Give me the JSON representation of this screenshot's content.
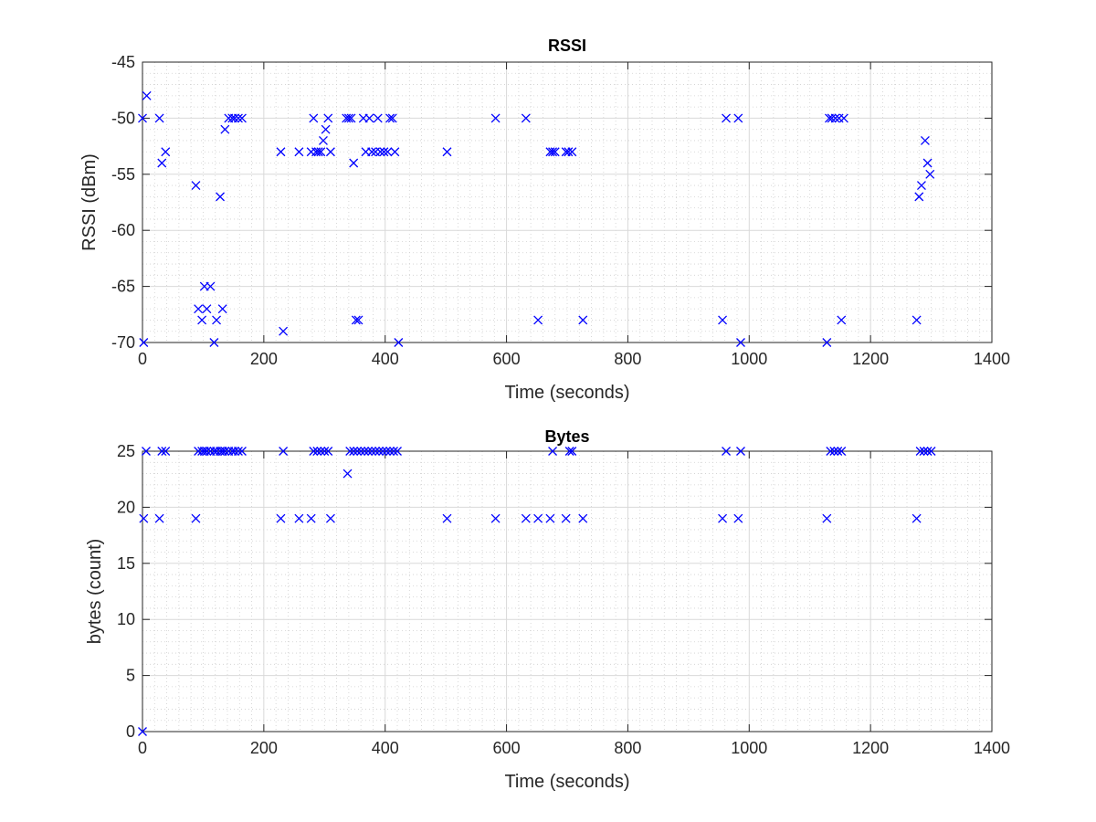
{
  "chart_data": [
    {
      "type": "scatter",
      "title": "RSSI",
      "xlabel": "Time (seconds)",
      "ylabel": "RSSI (dBm)",
      "xlim": [
        0,
        1400
      ],
      "ylim": [
        -70,
        -45
      ],
      "xticks": [
        0,
        200,
        400,
        600,
        800,
        1000,
        1200,
        1400
      ],
      "xtick_labels": [
        "0",
        "200",
        "400",
        "600",
        "800",
        "1000",
        "1200",
        "1400"
      ],
      "yticks": [
        -70,
        -65,
        -60,
        -55,
        -50,
        -45
      ],
      "ytick_labels": [
        "-70",
        "-65",
        "-60",
        "-55",
        "-50",
        "-45"
      ],
      "grid": true,
      "minor_grid": true,
      "marker": "x",
      "marker_color": "#0000ff",
      "points": [
        [
          0,
          -50
        ],
        [
          2,
          -70
        ],
        [
          7,
          -48
        ],
        [
          28,
          -50
        ],
        [
          32,
          -54
        ],
        [
          38,
          -53
        ],
        [
          88,
          -56
        ],
        [
          92,
          -67
        ],
        [
          98,
          -68
        ],
        [
          102,
          -65
        ],
        [
          106,
          -67
        ],
        [
          112,
          -65
        ],
        [
          118,
          -70
        ],
        [
          122,
          -68
        ],
        [
          128,
          -57
        ],
        [
          132,
          -67
        ],
        [
          136,
          -51
        ],
        [
          142,
          -50
        ],
        [
          148,
          -50
        ],
        [
          152,
          -50
        ],
        [
          158,
          -50
        ],
        [
          164,
          -50
        ],
        [
          228,
          -53
        ],
        [
          232,
          -69
        ],
        [
          258,
          -53
        ],
        [
          278,
          -53
        ],
        [
          282,
          -50
        ],
        [
          286,
          -53
        ],
        [
          290,
          -53
        ],
        [
          294,
          -53
        ],
        [
          298,
          -52
        ],
        [
          302,
          -51
        ],
        [
          306,
          -50
        ],
        [
          310,
          -53
        ],
        [
          336,
          -50
        ],
        [
          340,
          -50
        ],
        [
          344,
          -50
        ],
        [
          348,
          -54
        ],
        [
          352,
          -68
        ],
        [
          356,
          -68
        ],
        [
          364,
          -50
        ],
        [
          368,
          -53
        ],
        [
          374,
          -50
        ],
        [
          378,
          -53
        ],
        [
          384,
          -53
        ],
        [
          388,
          -50
        ],
        [
          392,
          -53
        ],
        [
          398,
          -53
        ],
        [
          404,
          -53
        ],
        [
          408,
          -50
        ],
        [
          412,
          -50
        ],
        [
          416,
          -53
        ],
        [
          422,
          -70
        ],
        [
          502,
          -53
        ],
        [
          582,
          -50
        ],
        [
          632,
          -50
        ],
        [
          652,
          -68
        ],
        [
          672,
          -53
        ],
        [
          676,
          -53
        ],
        [
          680,
          -53
        ],
        [
          698,
          -53
        ],
        [
          702,
          -53
        ],
        [
          708,
          -53
        ],
        [
          726,
          -68
        ],
        [
          956,
          -68
        ],
        [
          962,
          -50
        ],
        [
          982,
          -50
        ],
        [
          986,
          -70
        ],
        [
          1128,
          -70
        ],
        [
          1132,
          -50
        ],
        [
          1136,
          -50
        ],
        [
          1142,
          -50
        ],
        [
          1148,
          -50
        ],
        [
          1152,
          -68
        ],
        [
          1156,
          -50
        ],
        [
          1276,
          -68
        ],
        [
          1280,
          -57
        ],
        [
          1284,
          -56
        ],
        [
          1290,
          -52
        ],
        [
          1294,
          -54
        ],
        [
          1298,
          -55
        ]
      ]
    },
    {
      "type": "scatter",
      "title": "Bytes",
      "xlabel": "Time (seconds)",
      "ylabel": "bytes (count)",
      "xlim": [
        0,
        1400
      ],
      "ylim": [
        0,
        25
      ],
      "xticks": [
        0,
        200,
        400,
        600,
        800,
        1000,
        1200,
        1400
      ],
      "xtick_labels": [
        "0",
        "200",
        "400",
        "600",
        "800",
        "1000",
        "1200",
        "1400"
      ],
      "yticks": [
        0,
        5,
        10,
        15,
        20,
        25
      ],
      "ytick_labels": [
        "0",
        "5",
        "10",
        "15",
        "20",
        "25"
      ],
      "grid": true,
      "minor_grid": true,
      "marker": "x",
      "marker_color": "#0000ff",
      "points": [
        [
          0,
          0
        ],
        [
          2,
          19
        ],
        [
          6,
          25
        ],
        [
          28,
          19
        ],
        [
          32,
          25
        ],
        [
          38,
          25
        ],
        [
          88,
          19
        ],
        [
          92,
          25
        ],
        [
          98,
          25
        ],
        [
          102,
          25
        ],
        [
          106,
          25
        ],
        [
          112,
          25
        ],
        [
          118,
          25
        ],
        [
          122,
          25
        ],
        [
          128,
          25
        ],
        [
          132,
          25
        ],
        [
          136,
          25
        ],
        [
          142,
          25
        ],
        [
          148,
          25
        ],
        [
          152,
          25
        ],
        [
          158,
          25
        ],
        [
          164,
          25
        ],
        [
          228,
          19
        ],
        [
          232,
          25
        ],
        [
          258,
          19
        ],
        [
          278,
          19
        ],
        [
          282,
          25
        ],
        [
          288,
          25
        ],
        [
          294,
          25
        ],
        [
          300,
          25
        ],
        [
          306,
          25
        ],
        [
          310,
          19
        ],
        [
          338,
          23
        ],
        [
          342,
          25
        ],
        [
          348,
          25
        ],
        [
          354,
          25
        ],
        [
          360,
          25
        ],
        [
          366,
          25
        ],
        [
          372,
          25
        ],
        [
          378,
          25
        ],
        [
          384,
          25
        ],
        [
          390,
          25
        ],
        [
          396,
          25
        ],
        [
          402,
          25
        ],
        [
          408,
          25
        ],
        [
          414,
          25
        ],
        [
          420,
          25
        ],
        [
          502,
          19
        ],
        [
          582,
          19
        ],
        [
          632,
          19
        ],
        [
          652,
          19
        ],
        [
          672,
          19
        ],
        [
          676,
          25
        ],
        [
          698,
          19
        ],
        [
          704,
          25
        ],
        [
          708,
          25
        ],
        [
          726,
          19
        ],
        [
          956,
          19
        ],
        [
          962,
          25
        ],
        [
          982,
          19
        ],
        [
          986,
          25
        ],
        [
          1128,
          19
        ],
        [
          1134,
          25
        ],
        [
          1140,
          25
        ],
        [
          1146,
          25
        ],
        [
          1152,
          25
        ],
        [
          1276,
          19
        ],
        [
          1282,
          25
        ],
        [
          1288,
          25
        ],
        [
          1294,
          25
        ],
        [
          1300,
          25
        ]
      ]
    }
  ]
}
